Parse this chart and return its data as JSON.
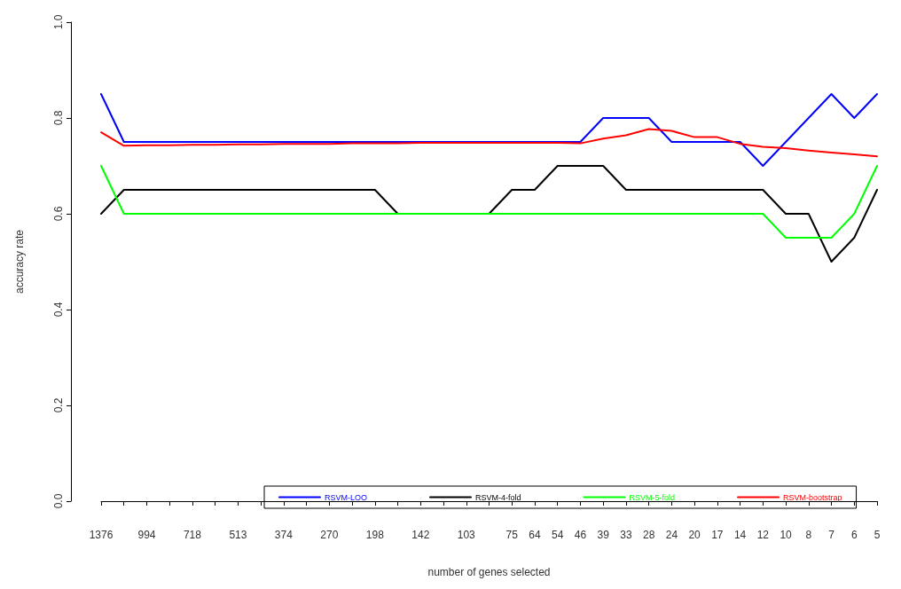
{
  "chart_data": {
    "type": "line",
    "xlabel": "number of genes selected",
    "ylabel": "accuracy rate",
    "categories": [
      "1376",
      null,
      "994",
      null,
      "718",
      null,
      "513",
      null,
      "374",
      null,
      "270",
      null,
      "198",
      null,
      "142",
      null,
      "103",
      null,
      "75",
      "64",
      "54",
      "46",
      "39",
      "33",
      "28",
      "24",
      "20",
      "17",
      "14",
      "12",
      "10",
      "8",
      "7",
      "6",
      "5"
    ],
    "series": [
      {
        "name": "RSVM-LOO",
        "color": "#0000ff",
        "values": [
          0.85,
          0.75,
          0.75,
          0.75,
          0.75,
          0.75,
          0.75,
          0.75,
          0.75,
          0.75,
          0.75,
          0.75,
          0.75,
          0.75,
          0.75,
          0.75,
          0.75,
          0.75,
          0.75,
          0.75,
          0.75,
          0.75,
          0.8,
          0.8,
          0.8,
          0.75,
          0.75,
          0.75,
          0.75,
          0.7,
          0.75,
          0.8,
          0.85,
          0.8,
          0.85
        ]
      },
      {
        "name": "RSVM-4-fold",
        "color": "#000000",
        "values": [
          0.6,
          0.65,
          0.65,
          0.65,
          0.65,
          0.65,
          0.65,
          0.65,
          0.65,
          0.65,
          0.65,
          0.65,
          0.65,
          0.6,
          0.6,
          0.6,
          0.6,
          0.6,
          0.65,
          0.65,
          0.7,
          0.7,
          0.7,
          0.65,
          0.65,
          0.65,
          0.65,
          0.65,
          0.65,
          0.65,
          0.6,
          0.6,
          0.5,
          0.55,
          0.65
        ]
      },
      {
        "name": "RSVM-5-fold",
        "color": "#00ff00",
        "values": [
          0.7,
          0.6,
          0.6,
          0.6,
          0.6,
          0.6,
          0.6,
          0.6,
          0.6,
          0.6,
          0.6,
          0.6,
          0.6,
          0.6,
          0.6,
          0.6,
          0.6,
          0.6,
          0.6,
          0.6,
          0.6,
          0.6,
          0.6,
          0.6,
          0.6,
          0.6,
          0.6,
          0.6,
          0.6,
          0.6,
          0.55,
          0.55,
          0.55,
          0.6,
          0.7
        ]
      },
      {
        "name": "RSVM-bootstrap",
        "color": "#ff0000",
        "values": [
          0.77,
          0.742,
          0.743,
          0.743,
          0.744,
          0.744,
          0.745,
          0.745,
          0.746,
          0.746,
          0.746,
          0.747,
          0.747,
          0.747,
          0.748,
          0.748,
          0.748,
          0.748,
          0.748,
          0.748,
          0.748,
          0.747,
          0.757,
          0.764,
          0.777,
          0.773,
          0.76,
          0.76,
          0.746,
          0.74,
          0.737,
          0.732,
          0.728,
          0.724,
          0.72
        ]
      }
    ],
    "ylim": [
      0,
      1
    ],
    "yticks": [
      {
        "value": 0,
        "label": "0.0"
      },
      {
        "value": 0.2,
        "label": "0.2"
      },
      {
        "value": 0.4,
        "label": "0.4"
      },
      {
        "value": 0.6,
        "label": "0.6"
      },
      {
        "value": 0.8,
        "label": "0.8"
      },
      {
        "value": 1,
        "label": "1.0"
      }
    ],
    "grid": false,
    "legend": "bottom",
    "marker": "none",
    "line_style": "solid"
  }
}
